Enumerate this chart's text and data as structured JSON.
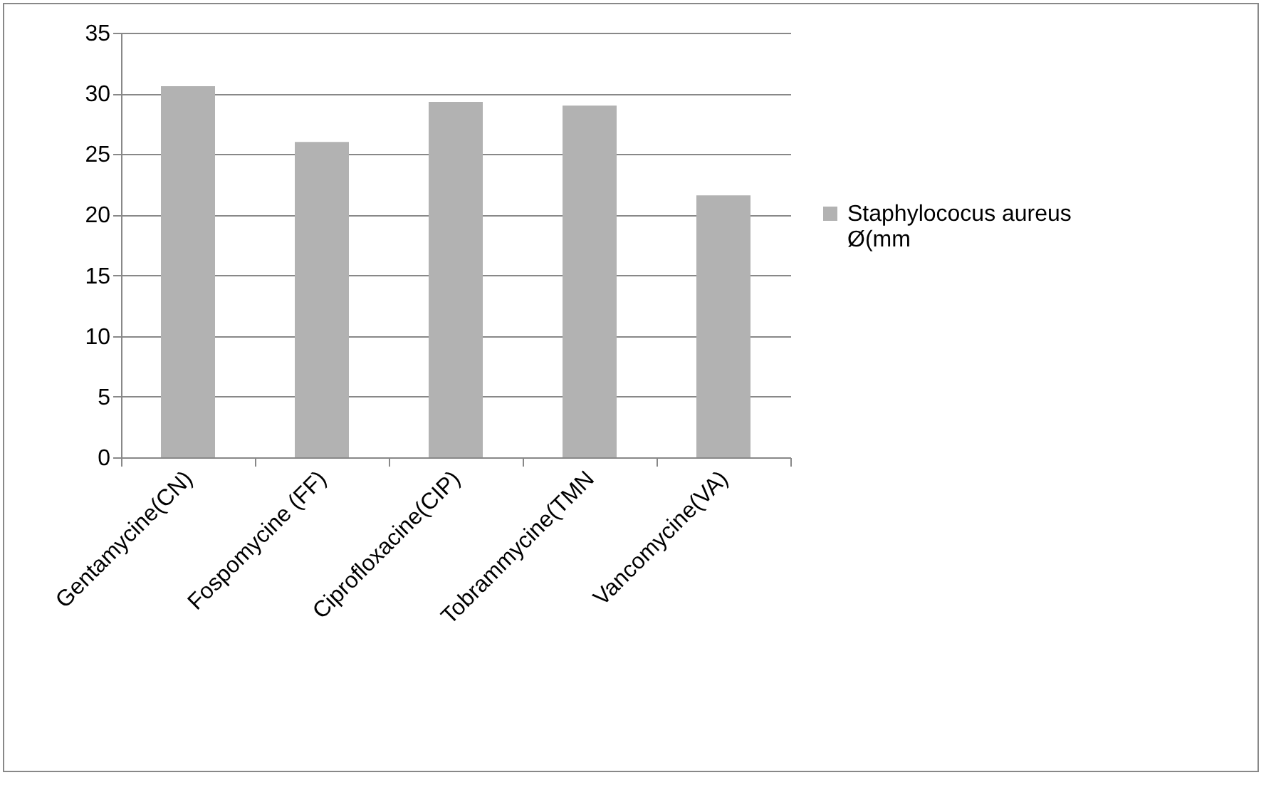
{
  "chart_data": {
    "type": "bar",
    "categories": [
      "Gentamycine(CN)",
      "Fospomycine (FF)",
      "Ciprofloxacine(CIP)",
      "Tobrammycine(TMN",
      "Vancomycine(VA)"
    ],
    "series": [
      {
        "name": "Staphylococus aureus Ø(mm",
        "color": "#b2b2b2",
        "values": [
          30.6,
          26.0,
          29.3,
          29.0,
          21.6
        ]
      }
    ],
    "ylim": [
      0,
      35
    ],
    "yticks": [
      0,
      5,
      10,
      15,
      20,
      25,
      30,
      35
    ],
    "grid": "y",
    "legend": "right"
  }
}
